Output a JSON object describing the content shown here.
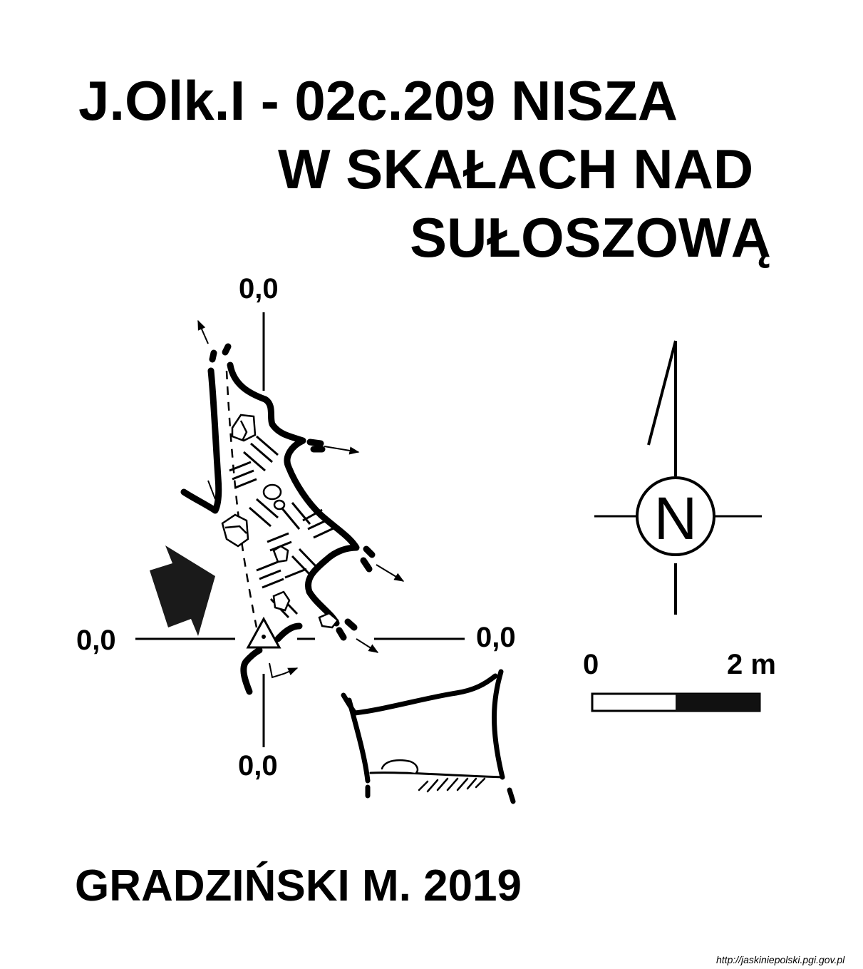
{
  "title": {
    "line1": "J.Olk.I - 02c.209  NISZA",
    "line2": "W SKAŁACH NAD",
    "line3": "SUŁOSZOWĄ"
  },
  "plan": {
    "axis_top_label": "0,0",
    "axis_left_label": "0,0",
    "axis_right_label": "0,0",
    "axis_bottom_label": "0,0"
  },
  "north_arrow": {
    "letter": "N"
  },
  "scale_bar": {
    "start_label": "0",
    "end_label": "2 m"
  },
  "author": "GRADZIŃSKI M. 2019",
  "source_url": "http://jaskiniepolski.pgi.gov.pl",
  "colors": {
    "ink": "#000000",
    "paper": "#ffffff"
  }
}
